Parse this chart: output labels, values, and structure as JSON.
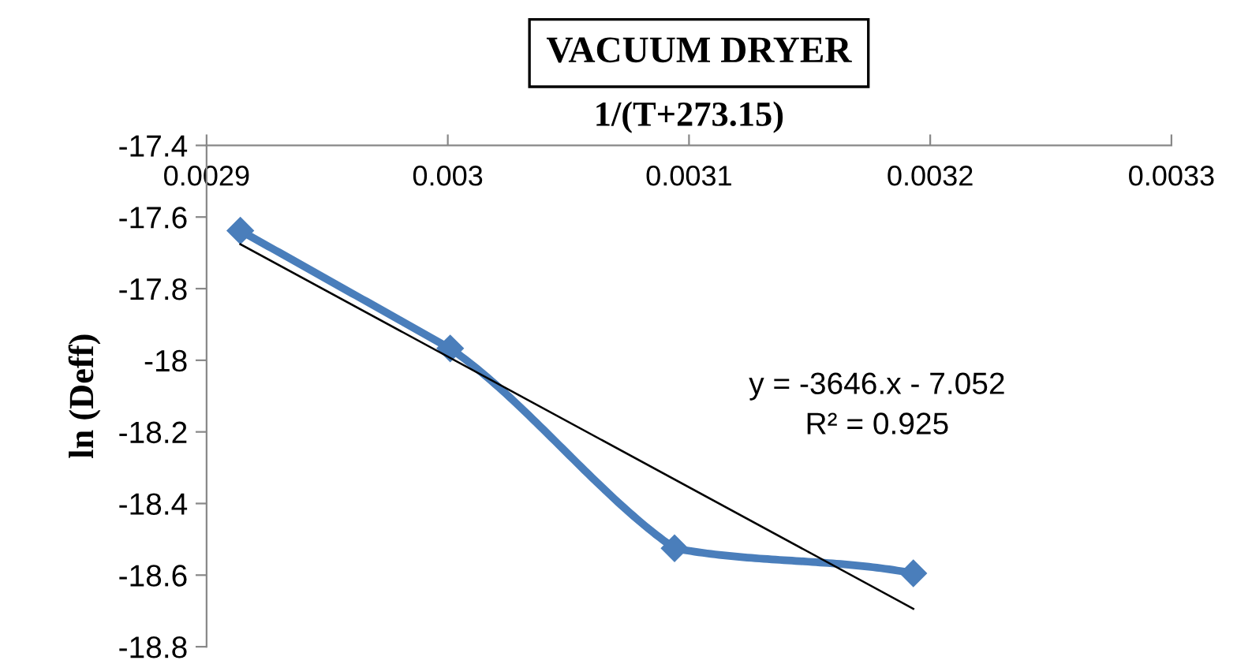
{
  "chart_data": {
    "type": "line",
    "title": "VACUUM DRYER",
    "xlabel": "1/(T+273.15)",
    "ylabel": "ln (Deff)",
    "series": [
      {
        "color": "#4a7ebb",
        "marker": "diamond",
        "x": [
          0.002914,
          0.003001,
          0.003094,
          0.003193
        ],
        "values": [
          -17.638,
          -17.967,
          -18.525,
          -18.595
        ]
      },
      {
        "type": "line",
        "color": "#000000",
        "marker": "none",
        "x": [
          0.002914,
          0.003193
        ],
        "values": [
          -17.676,
          -18.694
        ]
      }
    ],
    "xlim": [
      0.0029,
      0.0033
    ],
    "xticks": [
      0.0029,
      0.003,
      0.0031,
      0.0032,
      0.0033
    ],
    "ylim": [
      -18.8,
      -17.4
    ],
    "yticks": [
      -17.4,
      -17.6,
      -17.8,
      -18,
      -18.2,
      -18.4,
      -18.6,
      -18.8
    ],
    "grid": false,
    "legend": false,
    "annotations": [
      "y = -3646.x - 7.052",
      "R² = 0.925"
    ]
  }
}
